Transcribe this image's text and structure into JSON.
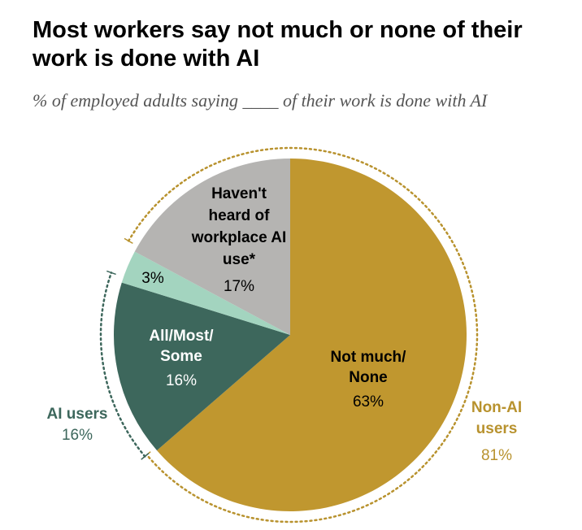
{
  "title": "Most workers say not much or none of their work is done with AI",
  "subtitle": "% of employed adults saying ____ of their work is done with AI",
  "colors": {
    "not_much": "#C0972F",
    "all_most_some": "#3D675C",
    "small": "#A3D4BF",
    "havent_heard": "#B5B4B2",
    "ai_users": "#3D675C",
    "non_ai_users": "#B8922E"
  },
  "chart_data": {
    "type": "pie",
    "start": "top",
    "direction": "clockwise",
    "slices": [
      {
        "label": "Not much/ None",
        "value": 63,
        "value_label": "63%"
      },
      {
        "label": "All/Most/ Some",
        "value": 16,
        "value_label": "16%"
      },
      {
        "label": "",
        "value": 3,
        "value_label": "3%"
      },
      {
        "label": "Haven't heard of workplace AI use*",
        "value": 17,
        "value_label": "17%"
      }
    ],
    "groups": [
      {
        "label": "AI users",
        "value_label": "16%"
      },
      {
        "label": "Non-AI users",
        "value_label": "81%"
      }
    ]
  }
}
